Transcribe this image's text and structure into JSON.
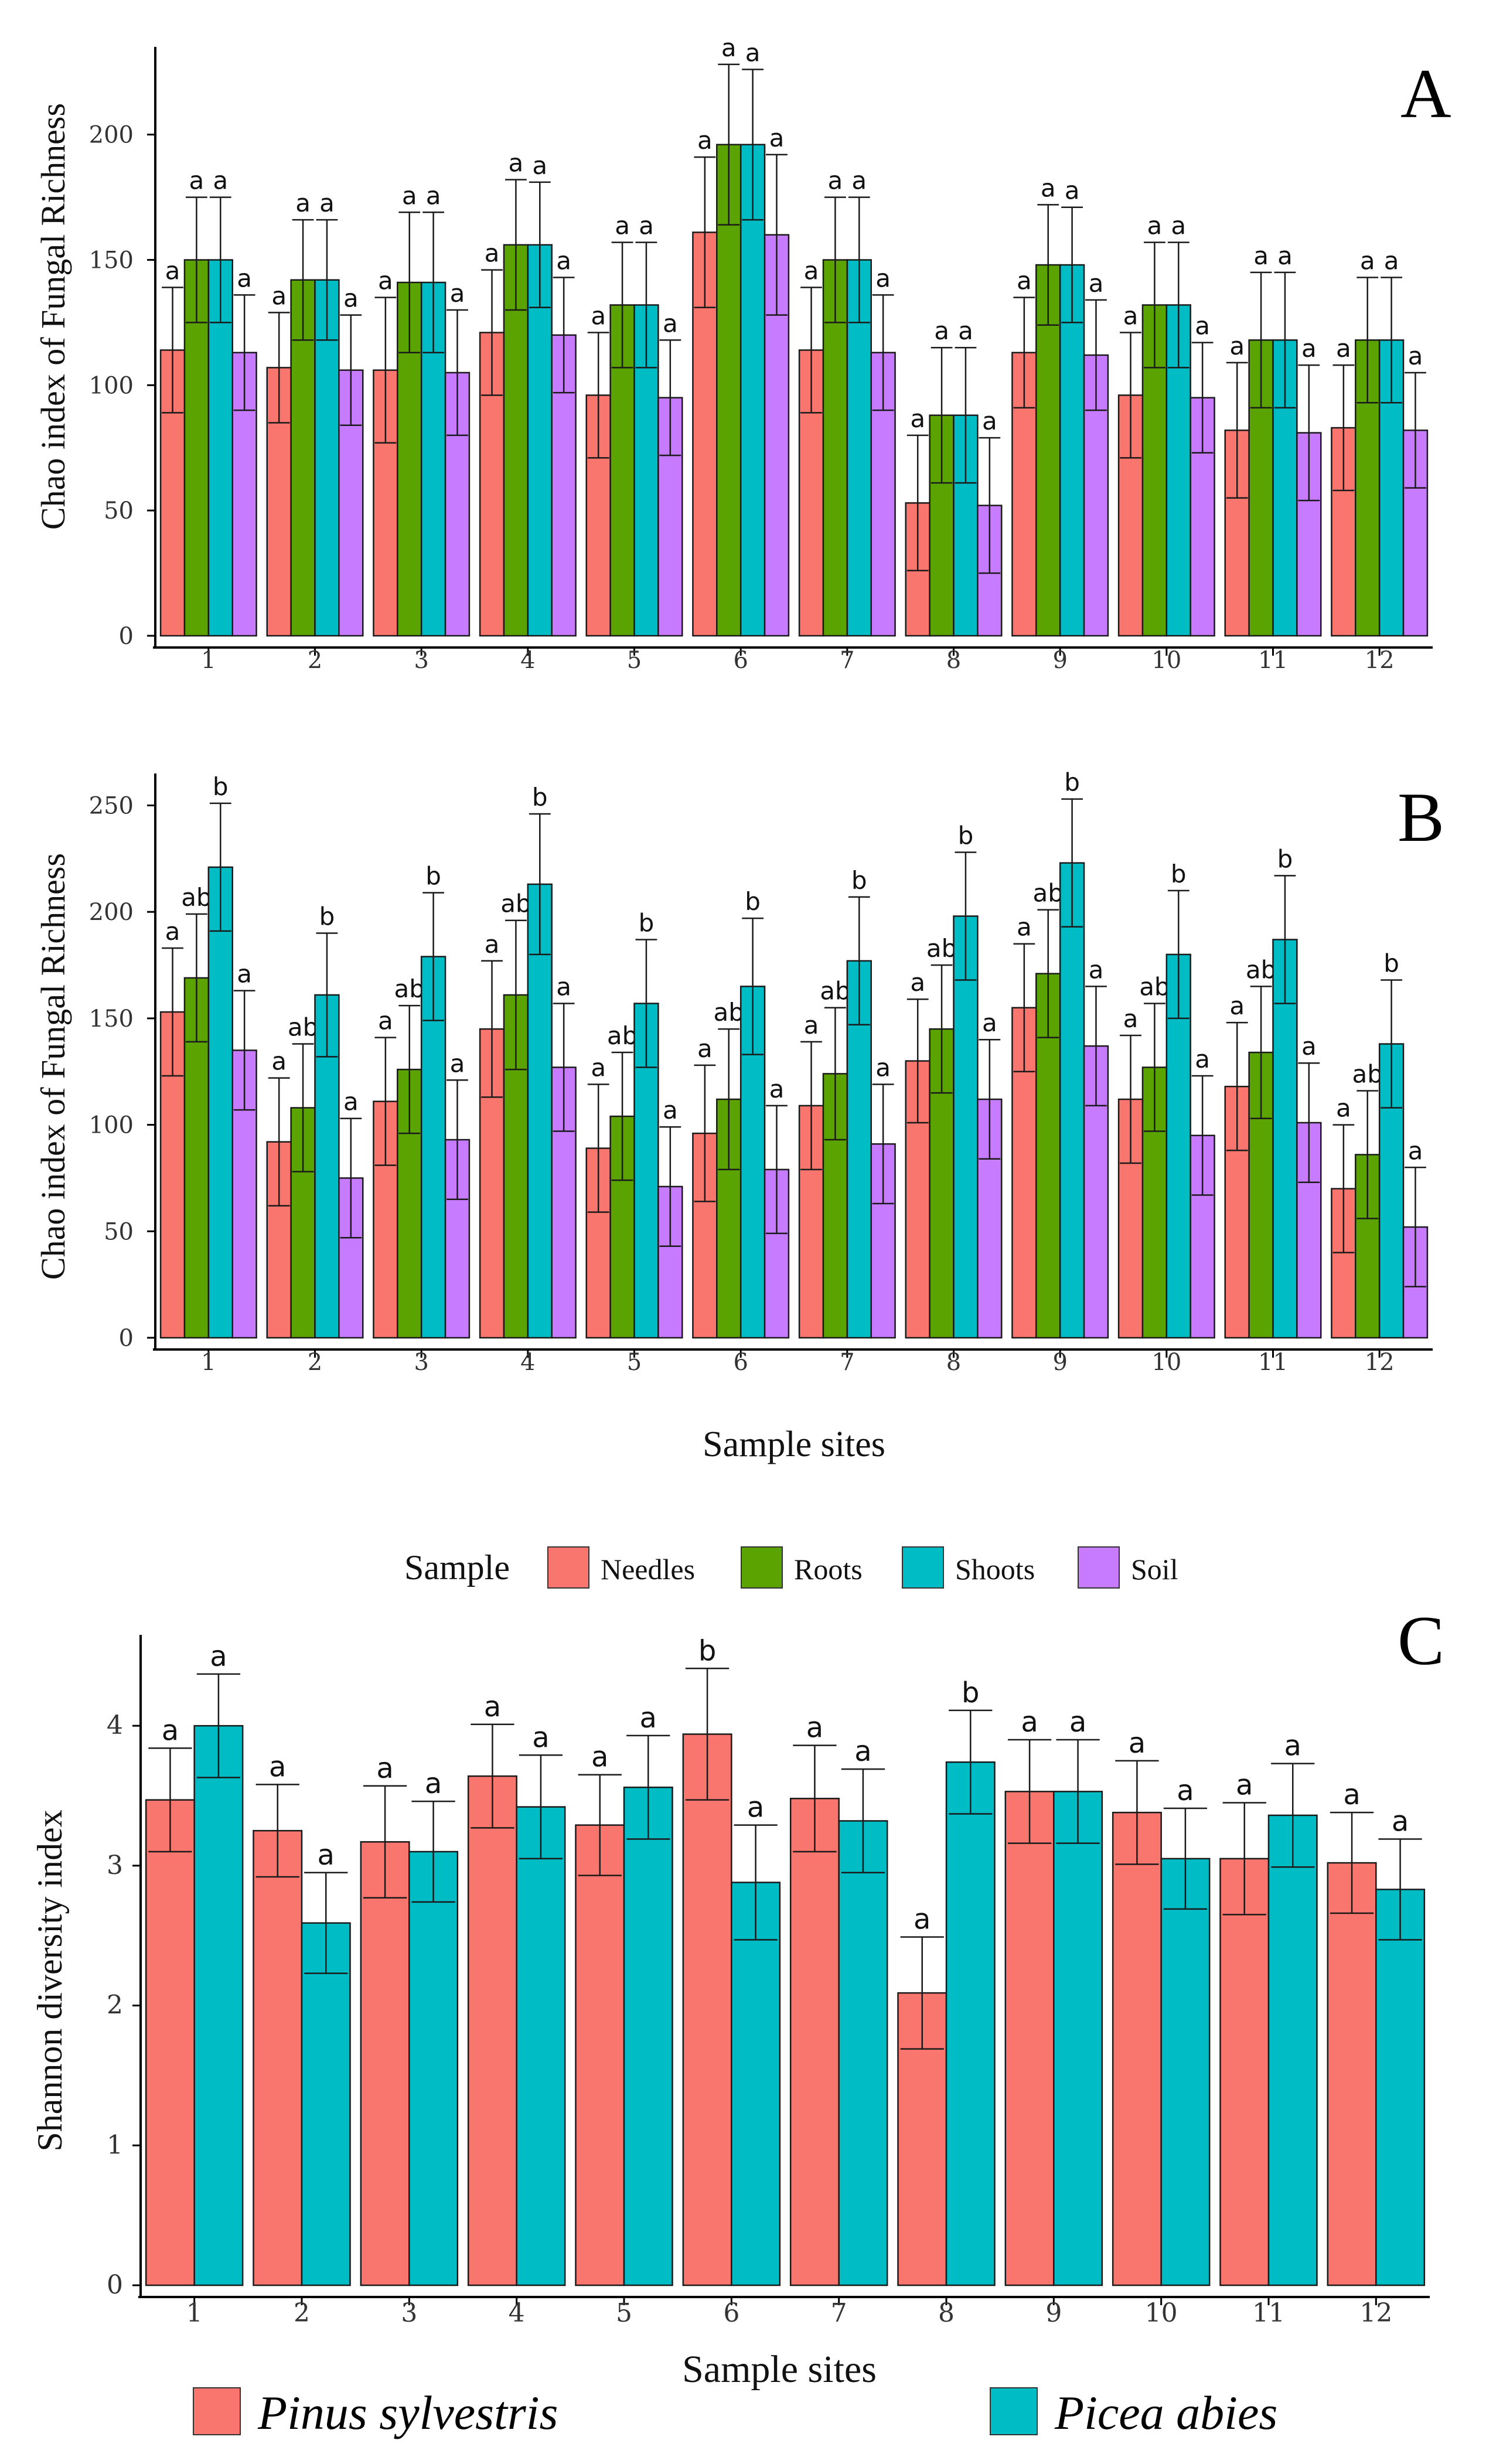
{
  "colors": {
    "needles": "#F8766D",
    "roots": "#5BA300",
    "shoots": "#00BCC4",
    "soil": "#C77CFF",
    "pinus": "#F8766D",
    "picea": "#00BCC4",
    "axis": "#000000",
    "tick": "#555555"
  },
  "legend": {
    "title": "Sample",
    "items": [
      "Needles",
      "Roots",
      "Shoots",
      "Soil"
    ],
    "species": [
      "Pinus sylvestris",
      "Picea abies"
    ]
  },
  "chart_data": [
    {
      "panel": "A",
      "type": "bar",
      "ylabel": "Chao index of Fungal Richness",
      "xlabel": "",
      "ylim": [
        0,
        235
      ],
      "yticks": [
        "0",
        "50",
        "100",
        "150",
        "200"
      ],
      "categories": [
        "1",
        "2",
        "3",
        "4",
        "5",
        "6",
        "7",
        "8",
        "9",
        "10",
        "11",
        "12"
      ],
      "series": [
        {
          "name": "Needles",
          "values": [
            114,
            107,
            106,
            121,
            96,
            161,
            114,
            53,
            113,
            96,
            82,
            83
          ],
          "errors": [
            25,
            22,
            29,
            25,
            25,
            30,
            25,
            27,
            22,
            25,
            27,
            25
          ],
          "labels": [
            "a",
            "a",
            "a",
            "a",
            "a",
            "a",
            "a",
            "a",
            "a",
            "a",
            "a",
            "a"
          ]
        },
        {
          "name": "Roots",
          "values": [
            150,
            142,
            141,
            156,
            132,
            196,
            150,
            88,
            148,
            132,
            118,
            118
          ],
          "errors": [
            25,
            24,
            28,
            26,
            25,
            32,
            25,
            27,
            24,
            25,
            27,
            25
          ],
          "labels": [
            "a",
            "a",
            "a",
            "a",
            "a",
            "a",
            "a",
            "a",
            "a",
            "a",
            "a",
            "a"
          ]
        },
        {
          "name": "Shoots",
          "values": [
            150,
            142,
            141,
            156,
            132,
            196,
            150,
            88,
            148,
            132,
            118,
            118
          ],
          "errors": [
            25,
            24,
            28,
            25,
            25,
            30,
            25,
            27,
            23,
            25,
            27,
            25
          ],
          "labels": [
            "a",
            "a",
            "a",
            "a",
            "a",
            "a",
            "a",
            "a",
            "a",
            "a",
            "a",
            "a"
          ]
        },
        {
          "name": "Soil",
          "values": [
            113,
            106,
            105,
            120,
            95,
            160,
            113,
            52,
            112,
            95,
            81,
            82
          ],
          "errors": [
            23,
            22,
            25,
            23,
            23,
            32,
            23,
            27,
            22,
            22,
            27,
            23
          ],
          "labels": [
            "a",
            "a",
            "a",
            "a",
            "a",
            "a",
            "a",
            "a",
            "a",
            "a",
            "a",
            "a"
          ]
        }
      ]
    },
    {
      "panel": "B",
      "type": "bar",
      "ylabel": "Chao index of Fungal Richness",
      "xlabel": "Sample sites",
      "ylim": [
        0,
        265
      ],
      "yticks": [
        "0",
        "50",
        "100",
        "150",
        "200",
        "250"
      ],
      "categories": [
        "1",
        "2",
        "3",
        "4",
        "5",
        "6",
        "7",
        "8",
        "9",
        "10",
        "11",
        "12"
      ],
      "series": [
        {
          "name": "Needles",
          "values": [
            153,
            92,
            111,
            145,
            89,
            96,
            109,
            130,
            155,
            112,
            118,
            70
          ],
          "errors": [
            30,
            30,
            30,
            32,
            30,
            32,
            30,
            29,
            30,
            30,
            30,
            30
          ],
          "labels": [
            "a",
            "a",
            "a",
            "a",
            "a",
            "a",
            "a",
            "a",
            "a",
            "a",
            "a",
            "a"
          ]
        },
        {
          "name": "Roots",
          "values": [
            169,
            108,
            126,
            161,
            104,
            112,
            124,
            145,
            171,
            127,
            134,
            86
          ],
          "errors": [
            30,
            30,
            30,
            35,
            30,
            33,
            31,
            30,
            30,
            30,
            31,
            30
          ],
          "labels": [
            "ab",
            "ab",
            "ab",
            "ab",
            "ab",
            "ab",
            "ab",
            "ab",
            "ab",
            "ab",
            "ab",
            "ab"
          ]
        },
        {
          "name": "Shoots",
          "values": [
            221,
            161,
            179,
            213,
            157,
            165,
            177,
            198,
            223,
            180,
            187,
            138
          ],
          "errors": [
            30,
            29,
            30,
            33,
            30,
            32,
            30,
            30,
            30,
            30,
            30,
            30
          ],
          "labels": [
            "b",
            "b",
            "b",
            "b",
            "b",
            "b",
            "b",
            "b",
            "b",
            "b",
            "b",
            "b"
          ]
        },
        {
          "name": "Soil",
          "values": [
            135,
            75,
            93,
            127,
            71,
            79,
            91,
            112,
            137,
            95,
            101,
            52
          ],
          "errors": [
            28,
            28,
            28,
            30,
            28,
            30,
            28,
            28,
            28,
            28,
            28,
            28
          ],
          "labels": [
            "a",
            "a",
            "a",
            "a",
            "a",
            "a",
            "a",
            "a",
            "a",
            "a",
            "a",
            "a"
          ]
        }
      ]
    },
    {
      "panel": "C",
      "type": "bar",
      "ylabel": "Shannon diversity index",
      "xlabel": "Sample sites",
      "ylim": [
        0,
        4.65
      ],
      "yticks": [
        "0",
        "1",
        "2",
        "3",
        "4"
      ],
      "categories": [
        "1",
        "2",
        "3",
        "4",
        "5",
        "6",
        "7",
        "8",
        "9",
        "10",
        "11",
        "12"
      ],
      "series": [
        {
          "name": "Pinus sylvestris",
          "values": [
            3.47,
            3.25,
            3.17,
            3.64,
            3.29,
            3.94,
            3.48,
            2.09,
            3.53,
            3.38,
            3.05,
            3.02
          ],
          "errors": [
            0.37,
            0.33,
            0.4,
            0.37,
            0.36,
            0.47,
            0.38,
            0.4,
            0.37,
            0.37,
            0.4,
            0.36
          ],
          "labels": [
            "a",
            "a",
            "a",
            "a",
            "a",
            "b",
            "a",
            "a",
            "a",
            "a",
            "a",
            "a"
          ]
        },
        {
          "name": "Picea abies",
          "values": [
            4.0,
            2.59,
            3.1,
            3.42,
            3.56,
            2.88,
            3.32,
            3.74,
            3.53,
            3.05,
            3.36,
            2.83
          ],
          "errors": [
            0.37,
            0.36,
            0.36,
            0.37,
            0.37,
            0.41,
            0.37,
            0.37,
            0.37,
            0.36,
            0.37,
            0.36
          ],
          "labels": [
            "a",
            "a",
            "a",
            "a",
            "a",
            "a",
            "a",
            "b",
            "a",
            "a",
            "a",
            "a"
          ]
        }
      ]
    }
  ]
}
